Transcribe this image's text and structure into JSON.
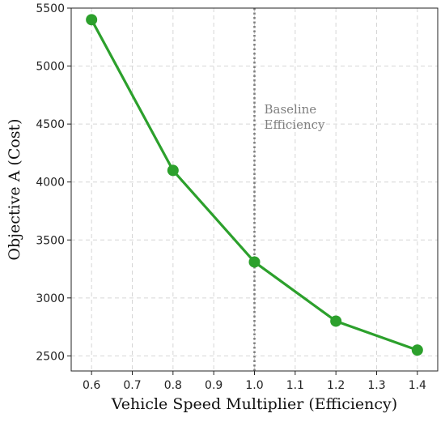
{
  "chart_data": {
    "type": "line",
    "title": "",
    "xlabel": "Vehicle Speed Multiplier (Efficiency)",
    "ylabel": "Objective A (Cost)",
    "xlim": [
      0.55,
      1.45
    ],
    "ylim": [
      2370,
      5500
    ],
    "xticks": [
      0.6,
      0.7,
      0.8,
      0.9,
      1.0,
      1.1,
      1.2,
      1.3,
      1.4
    ],
    "xtick_labels": [
      "0.6",
      "0.7",
      "0.8",
      "0.9",
      "1.0",
      "1.1",
      "1.2",
      "1.3",
      "1.4"
    ],
    "yticks": [
      2500,
      3000,
      3500,
      4000,
      4500,
      5000,
      5500
    ],
    "ytick_labels": [
      "2500",
      "3000",
      "3500",
      "4000",
      "4500",
      "5000",
      "5500"
    ],
    "grid": true,
    "series": [
      {
        "x": [
          0.6,
          0.8,
          1.0,
          1.2,
          1.4
        ],
        "y": [
          5400,
          4100,
          3310,
          2800,
          2550
        ],
        "color": "#2ca02c"
      }
    ],
    "reference_line": {
      "x": 1.0,
      "label_lines": [
        "Baseline",
        "Efficiency"
      ],
      "color": "#7f7f7f"
    }
  }
}
